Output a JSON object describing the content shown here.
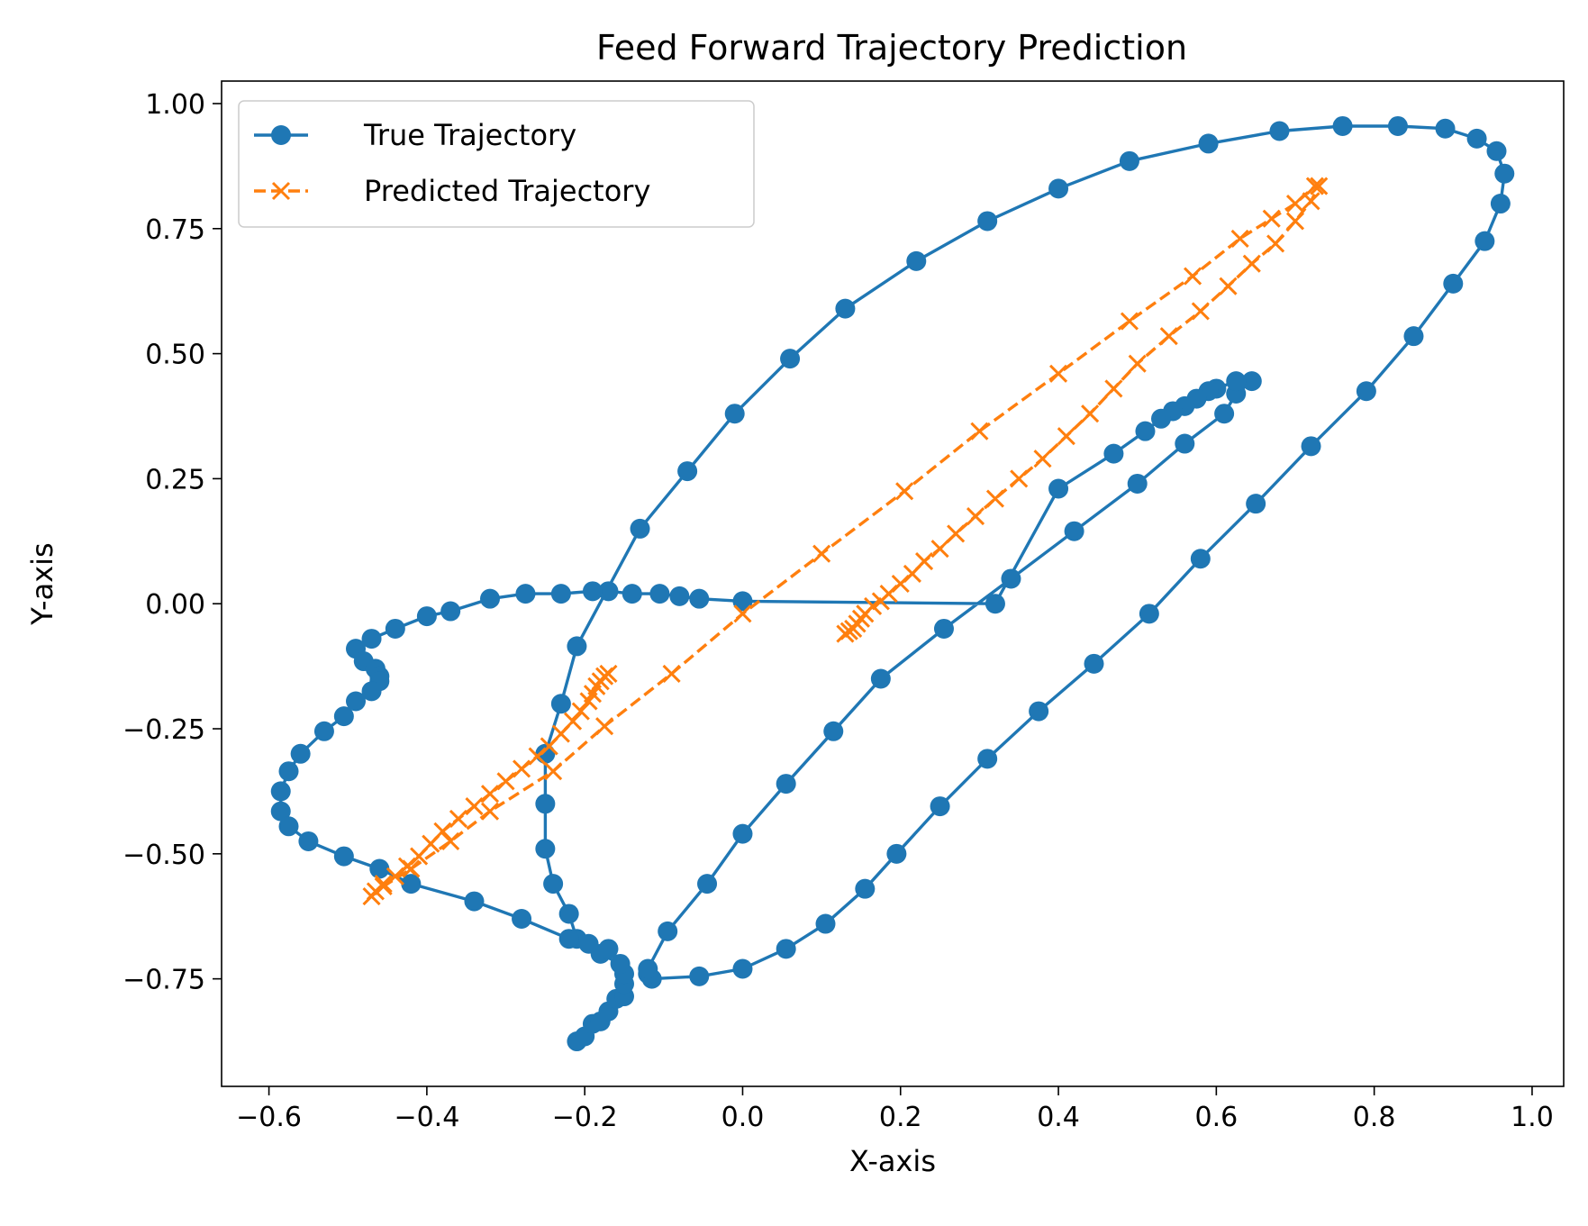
{
  "chart_data": {
    "type": "line",
    "title": "Feed Forward Trajectory Prediction",
    "xlabel": "X-axis",
    "ylabel": "Y-axis",
    "xlim": [
      -0.66,
      1.04
    ],
    "ylim": [
      -0.965,
      1.045
    ],
    "grid": false,
    "legend_position": "top-left",
    "x_ticks": [
      "−0.6",
      "−0.4",
      "−0.2",
      "0.0",
      "0.2",
      "0.4",
      "0.6",
      "0.8",
      "1.0"
    ],
    "x_tick_values": [
      -0.6,
      -0.4,
      -0.2,
      0.0,
      0.2,
      0.4,
      0.6,
      0.8,
      1.0
    ],
    "y_ticks": [
      "1.00",
      "0.75",
      "0.50",
      "0.25",
      "0.00",
      "−0.25",
      "−0.50",
      "−0.75"
    ],
    "y_tick_values": [
      1.0,
      0.75,
      0.5,
      0.25,
      0.0,
      -0.25,
      -0.5,
      -0.75
    ],
    "series": [
      {
        "name": "True Trajectory",
        "color": "#1f77b4",
        "marker": "circle",
        "linestyle": "solid",
        "points": [
          [
            -0.21,
            -0.875
          ],
          [
            -0.2,
            -0.865
          ],
          [
            -0.19,
            -0.84
          ],
          [
            -0.18,
            -0.835
          ],
          [
            -0.17,
            -0.815
          ],
          [
            -0.16,
            -0.79
          ],
          [
            -0.15,
            -0.785
          ],
          [
            -0.15,
            -0.76
          ],
          [
            -0.15,
            -0.74
          ],
          [
            -0.155,
            -0.72
          ],
          [
            -0.18,
            -0.7
          ],
          [
            -0.21,
            -0.67
          ],
          [
            -0.22,
            -0.62
          ],
          [
            -0.24,
            -0.56
          ],
          [
            -0.25,
            -0.49
          ],
          [
            -0.25,
            -0.4
          ],
          [
            -0.25,
            -0.3
          ],
          [
            -0.23,
            -0.2
          ],
          [
            -0.21,
            -0.085
          ],
          [
            -0.13,
            0.15
          ],
          [
            -0.07,
            0.265
          ],
          [
            -0.01,
            0.38
          ],
          [
            0.06,
            0.49
          ],
          [
            0.13,
            0.59
          ],
          [
            0.22,
            0.685
          ],
          [
            0.31,
            0.765
          ],
          [
            0.4,
            0.83
          ],
          [
            0.49,
            0.885
          ],
          [
            0.59,
            0.92
          ],
          [
            0.68,
            0.945
          ],
          [
            0.76,
            0.955
          ],
          [
            0.83,
            0.955
          ],
          [
            0.89,
            0.95
          ],
          [
            0.93,
            0.93
          ],
          [
            0.955,
            0.905
          ],
          [
            0.965,
            0.86
          ],
          [
            0.96,
            0.8
          ],
          [
            0.94,
            0.725
          ],
          [
            0.9,
            0.64
          ],
          [
            0.85,
            0.535
          ],
          [
            0.79,
            0.425
          ],
          [
            0.72,
            0.315
          ],
          [
            0.65,
            0.2
          ],
          [
            0.58,
            0.09
          ],
          [
            0.515,
            -0.02
          ],
          [
            0.445,
            -0.12
          ],
          [
            0.375,
            -0.215
          ],
          [
            0.31,
            -0.31
          ],
          [
            0.25,
            -0.405
          ],
          [
            0.195,
            -0.5
          ],
          [
            0.155,
            -0.57
          ],
          [
            0.105,
            -0.64
          ],
          [
            0.055,
            -0.69
          ],
          [
            0.0,
            -0.73
          ],
          [
            -0.055,
            -0.745
          ],
          [
            -0.115,
            -0.75
          ],
          [
            -0.12,
            -0.74
          ],
          [
            -0.12,
            -0.73
          ],
          [
            -0.095,
            -0.655
          ],
          [
            -0.045,
            -0.56
          ],
          [
            0.0,
            -0.46
          ],
          [
            0.055,
            -0.36
          ],
          [
            0.115,
            -0.255
          ],
          [
            0.175,
            -0.15
          ],
          [
            0.255,
            -0.05
          ],
          [
            0.34,
            0.05
          ],
          [
            0.42,
            0.145
          ],
          [
            0.5,
            0.24
          ],
          [
            0.56,
            0.32
          ],
          [
            0.61,
            0.38
          ],
          [
            0.625,
            0.42
          ],
          [
            0.645,
            0.445
          ],
          [
            0.625,
            0.445
          ],
          [
            0.6,
            0.43
          ],
          [
            0.59,
            0.425
          ],
          [
            0.575,
            0.41
          ],
          [
            0.56,
            0.395
          ],
          [
            0.545,
            0.385
          ],
          [
            0.53,
            0.37
          ],
          [
            0.51,
            0.345
          ],
          [
            0.47,
            0.3
          ],
          [
            0.4,
            0.23
          ],
          [
            0.32,
            0.0
          ],
          [
            0.0,
            0.005
          ],
          [
            -0.055,
            0.01
          ],
          [
            -0.08,
            0.015
          ],
          [
            -0.105,
            0.02
          ],
          [
            -0.14,
            0.02
          ],
          [
            -0.17,
            0.025
          ],
          [
            -0.19,
            0.025
          ],
          [
            -0.23,
            0.02
          ],
          [
            -0.275,
            0.02
          ],
          [
            -0.32,
            0.01
          ],
          [
            -0.37,
            -0.015
          ],
          [
            -0.4,
            -0.025
          ],
          [
            -0.44,
            -0.05
          ],
          [
            -0.47,
            -0.07
          ],
          [
            -0.49,
            -0.09
          ],
          [
            -0.48,
            -0.115
          ],
          [
            -0.465,
            -0.13
          ],
          [
            -0.46,
            -0.145
          ],
          [
            -0.46,
            -0.155
          ],
          [
            -0.47,
            -0.175
          ],
          [
            -0.49,
            -0.195
          ],
          [
            -0.505,
            -0.225
          ],
          [
            -0.53,
            -0.255
          ],
          [
            -0.56,
            -0.3
          ],
          [
            -0.575,
            -0.335
          ],
          [
            -0.585,
            -0.375
          ],
          [
            -0.585,
            -0.415
          ],
          [
            -0.575,
            -0.445
          ],
          [
            -0.55,
            -0.475
          ],
          [
            -0.505,
            -0.505
          ],
          [
            -0.46,
            -0.53
          ],
          [
            -0.42,
            -0.56
          ],
          [
            -0.34,
            -0.595
          ],
          [
            -0.28,
            -0.63
          ],
          [
            -0.22,
            -0.67
          ],
          [
            -0.195,
            -0.68
          ],
          [
            -0.17,
            -0.69
          ]
        ]
      },
      {
        "name": "Predicted Trajectory",
        "color": "#ff7f0e",
        "marker": "x",
        "linestyle": "dashed",
        "points": [
          [
            0.13,
            -0.06
          ],
          [
            0.135,
            -0.055
          ],
          [
            0.14,
            -0.05
          ],
          [
            0.145,
            -0.04
          ],
          [
            0.15,
            -0.03
          ],
          [
            0.155,
            -0.02
          ],
          [
            0.165,
            -0.005
          ],
          [
            0.175,
            0.005
          ],
          [
            0.185,
            0.02
          ],
          [
            0.2,
            0.04
          ],
          [
            0.215,
            0.06
          ],
          [
            0.23,
            0.085
          ],
          [
            0.25,
            0.11
          ],
          [
            0.27,
            0.14
          ],
          [
            0.295,
            0.175
          ],
          [
            0.32,
            0.21
          ],
          [
            0.35,
            0.25
          ],
          [
            0.38,
            0.29
          ],
          [
            0.41,
            0.335
          ],
          [
            0.44,
            0.38
          ],
          [
            0.47,
            0.43
          ],
          [
            0.5,
            0.48
          ],
          [
            0.54,
            0.535
          ],
          [
            0.58,
            0.585
          ],
          [
            0.615,
            0.635
          ],
          [
            0.645,
            0.68
          ],
          [
            0.675,
            0.72
          ],
          [
            0.7,
            0.765
          ],
          [
            0.72,
            0.805
          ],
          [
            0.73,
            0.835
          ],
          [
            0.725,
            0.835
          ],
          [
            0.7,
            0.8
          ],
          [
            0.67,
            0.77
          ],
          [
            0.63,
            0.73
          ],
          [
            0.57,
            0.655
          ],
          [
            0.49,
            0.565
          ],
          [
            0.4,
            0.46
          ],
          [
            0.3,
            0.345
          ],
          [
            0.205,
            0.225
          ],
          [
            0.1,
            0.1
          ],
          [
            0.0,
            -0.02
          ],
          [
            -0.09,
            -0.14
          ],
          [
            -0.175,
            -0.245
          ],
          [
            -0.24,
            -0.335
          ],
          [
            -0.32,
            -0.415
          ],
          [
            -0.37,
            -0.475
          ],
          [
            -0.42,
            -0.53
          ],
          [
            -0.455,
            -0.565
          ],
          [
            -0.47,
            -0.585
          ],
          [
            -0.465,
            -0.575
          ],
          [
            -0.455,
            -0.56
          ],
          [
            -0.44,
            -0.545
          ],
          [
            -0.425,
            -0.525
          ],
          [
            -0.41,
            -0.505
          ],
          [
            -0.395,
            -0.48
          ],
          [
            -0.38,
            -0.455
          ],
          [
            -0.36,
            -0.43
          ],
          [
            -0.34,
            -0.405
          ],
          [
            -0.32,
            -0.38
          ],
          [
            -0.3,
            -0.355
          ],
          [
            -0.28,
            -0.33
          ],
          [
            -0.26,
            -0.305
          ],
          [
            -0.245,
            -0.285
          ],
          [
            -0.23,
            -0.26
          ],
          [
            -0.215,
            -0.235
          ],
          [
            -0.205,
            -0.215
          ],
          [
            -0.195,
            -0.195
          ],
          [
            -0.19,
            -0.18
          ],
          [
            -0.185,
            -0.165
          ],
          [
            -0.18,
            -0.155
          ],
          [
            -0.175,
            -0.145
          ],
          [
            -0.17,
            -0.14
          ]
        ]
      }
    ]
  }
}
